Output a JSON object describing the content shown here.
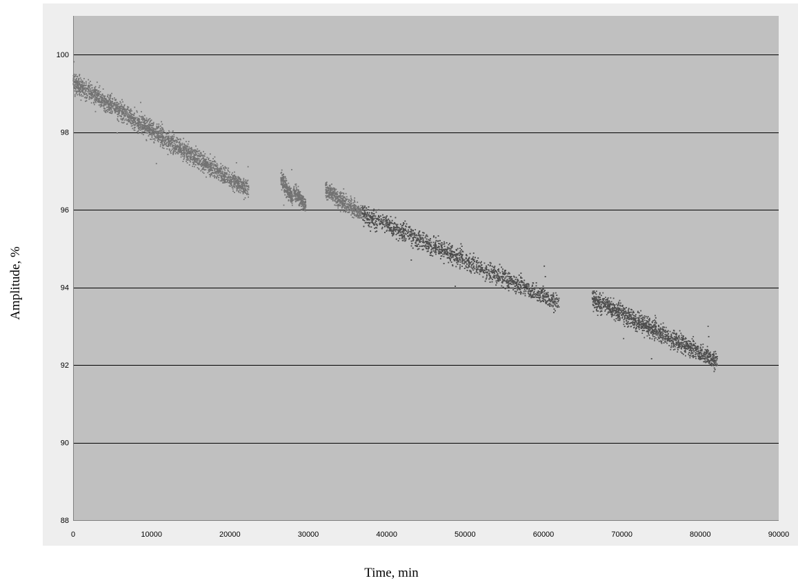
{
  "chart_data": {
    "type": "scatter",
    "title": "",
    "xlabel": "Time, min",
    "ylabel": "Amplitude, %",
    "xlim": [
      0,
      90000
    ],
    "ylim": [
      88,
      101
    ],
    "x_ticks": [
      0,
      10000,
      20000,
      30000,
      40000,
      50000,
      60000,
      70000,
      80000,
      90000
    ],
    "y_ticks": [
      88,
      90,
      92,
      94,
      96,
      98,
      100
    ],
    "grid": {
      "horizontal": true,
      "vertical": false
    },
    "legend": "none",
    "colors": {
      "background": "#c0c0c0",
      "frame": "#eeeeee",
      "gridline": "#000000",
      "marker_light": "#737373",
      "marker_dark": "#4d4d4d"
    },
    "segments": [
      {
        "x_start": 0,
        "x_end": 22400,
        "y_start": 99.3,
        "y_end": 96.5,
        "spread": 0.5,
        "color": "#737373"
      },
      {
        "x_start": 26500,
        "x_end": 28000,
        "y_start": 96.8,
        "y_end": 96.3,
        "spread": 0.45,
        "color": "#737373"
      },
      {
        "x_start": 28100,
        "x_end": 29700,
        "y_start": 96.5,
        "y_end": 96.1,
        "spread": 0.4,
        "color": "#737373"
      },
      {
        "x_start": 32200,
        "x_end": 36800,
        "y_start": 96.5,
        "y_end": 95.9,
        "spread": 0.45,
        "color": "#737373"
      },
      {
        "x_start": 36800,
        "x_end": 62000,
        "y_start": 95.9,
        "y_end": 93.6,
        "spread": 0.5,
        "color": "#4d4d4d"
      },
      {
        "x_start": 66200,
        "x_end": 82200,
        "y_start": 93.7,
        "y_end": 92.1,
        "spread": 0.5,
        "color": "#4d4d4d"
      }
    ]
  }
}
